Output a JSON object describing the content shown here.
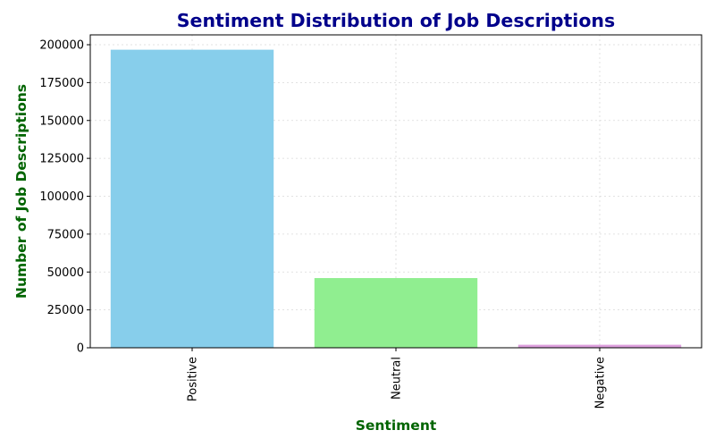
{
  "chart_data": {
    "type": "bar",
    "title": "Sentiment Distribution of Job Descriptions",
    "xlabel": "Sentiment",
    "ylabel": "Number of Job Descriptions",
    "categories": [
      "Positive",
      "Neutral",
      "Negative"
    ],
    "values": [
      196700,
      46000,
      2000
    ],
    "colors": [
      "#87ceeb",
      "#90ee90",
      "#dda0dd"
    ],
    "ylim": [
      0,
      206500
    ],
    "yticks": [
      0,
      25000,
      50000,
      75000,
      100000,
      125000,
      150000,
      175000,
      200000
    ],
    "grid": true,
    "title_color": "#00008b",
    "label_color": "#006400"
  }
}
